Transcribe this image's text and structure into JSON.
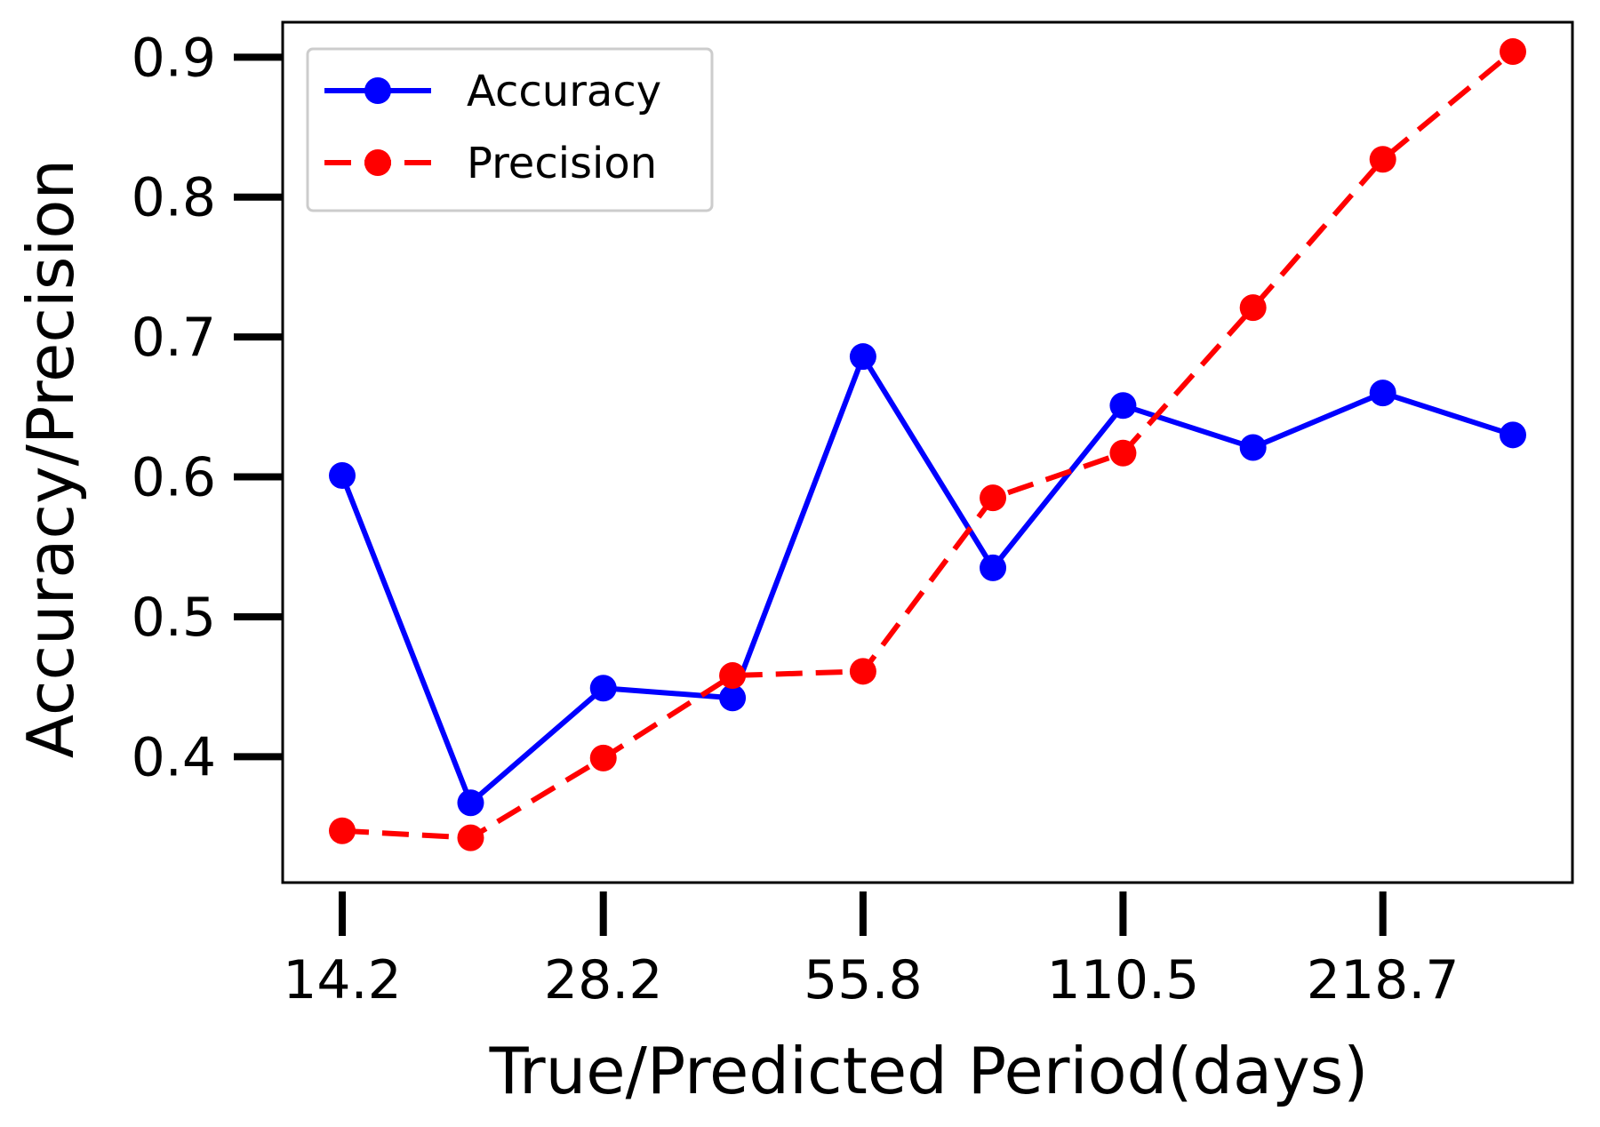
{
  "chart_data": {
    "type": "line",
    "xlabel": "True/Predicted Period(days)",
    "ylabel": "Accuracy/Precision",
    "x_tick_labels": [
      "14.2",
      "28.2",
      "55.8",
      "110.5",
      "218.7"
    ],
    "x_scale": "log",
    "x": [
      14.2,
      19.9,
      28.2,
      39.6,
      55.8,
      78.5,
      110.5,
      155.5,
      218.7,
      307.8
    ],
    "ylim": [
      0.31,
      0.925
    ],
    "y_ticks": [
      0.4,
      0.5,
      0.6,
      0.7,
      0.8,
      0.9
    ],
    "y_tick_labels": [
      "0.4",
      "0.5",
      "0.6",
      "0.7",
      "0.8",
      "0.9"
    ],
    "grid": false,
    "legend_position": "top-left",
    "series": [
      {
        "name": "Accuracy",
        "color": "#0000ff",
        "linestyle": "solid",
        "marker": "circle",
        "values": [
          0.601,
          0.367,
          0.449,
          0.442,
          0.686,
          0.535,
          0.651,
          0.621,
          0.66,
          0.63
        ]
      },
      {
        "name": "Precision",
        "color": "#ff0000",
        "linestyle": "dashed",
        "marker": "circle",
        "values": [
          0.347,
          0.342,
          0.399,
          0.458,
          0.461,
          0.585,
          0.617,
          0.721,
          0.827,
          0.904
        ]
      }
    ]
  }
}
